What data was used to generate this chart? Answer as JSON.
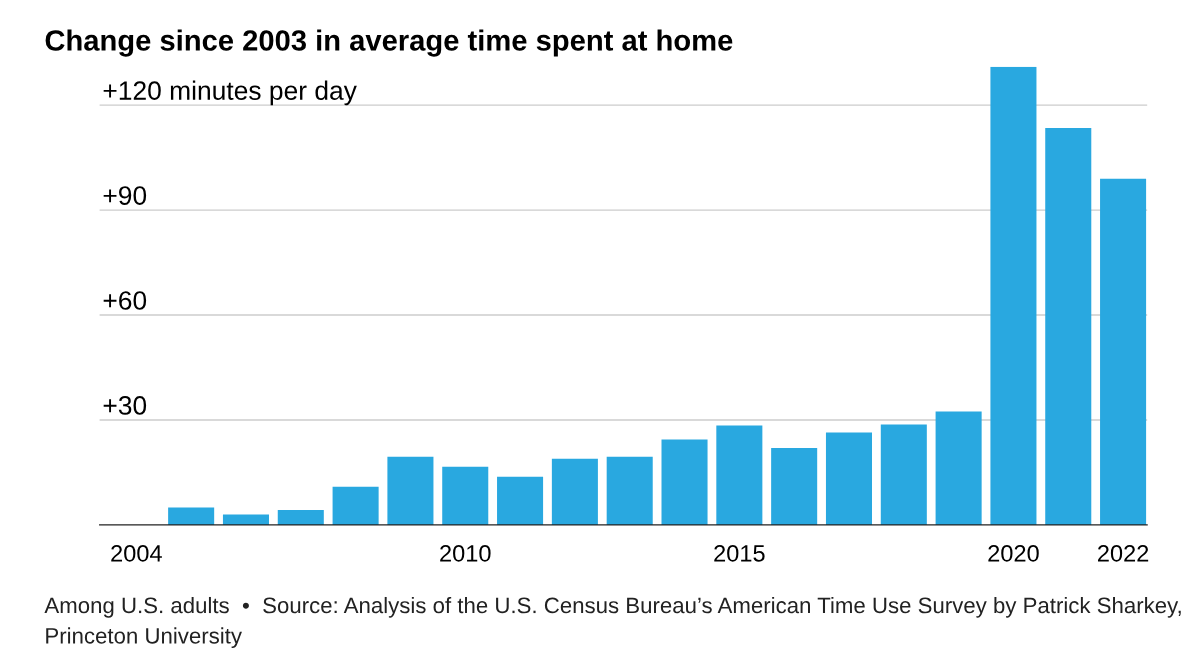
{
  "chart_data": {
    "type": "bar",
    "title": "Change since 2003 in average time spent at home",
    "categories": [
      "2004",
      null,
      null,
      null,
      null,
      null,
      "2010",
      null,
      null,
      null,
      null,
      "2015",
      null,
      null,
      null,
      null,
      "2020",
      null,
      "2022"
    ],
    "values": [
      null,
      5,
      3,
      4.3,
      10.9,
      19.5,
      16.6,
      13.8,
      18.9,
      19.5,
      24.4,
      28.4,
      22,
      26.4,
      28.7,
      32.4,
      131,
      113.5,
      99
    ],
    "color": "#29a8e0",
    "ylim": [
      0,
      131
    ],
    "yticks": [
      {
        "value": 30,
        "label": "+30"
      },
      {
        "value": 60,
        "label": "+60"
      },
      {
        "value": 90,
        "label": "+90"
      },
      {
        "value": 120,
        "label": "+120 minutes per day"
      }
    ],
    "grid": "y",
    "annotations": [
      "Among U.S. adults  •  Source: Analysis of the U.S. Census Bureau’s American Time Use Survey by Patrick Sharkey, Princeton University"
    ]
  }
}
